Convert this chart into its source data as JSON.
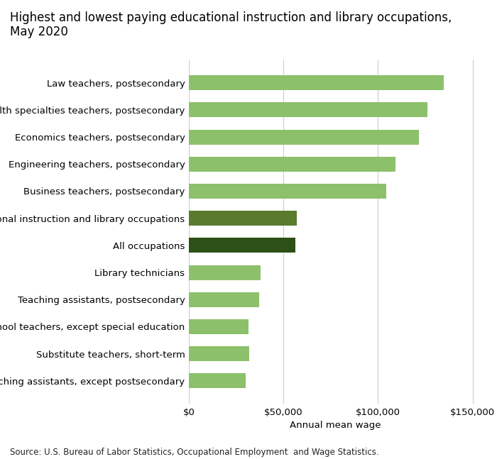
{
  "categories": [
    "Teaching assistants, except postsecondary",
    "Substitute teachers, short-term",
    "Preschool teachers, except special education",
    "Teaching assistants, postsecondary",
    "Library technicians",
    "All occupations",
    "All educational instruction and library occupations",
    "Business teachers, postsecondary",
    "Engineering teachers, postsecondary",
    "Economics teachers, postsecondary",
    "Health specialties teachers, postsecondary",
    "Law teachers, postsecondary"
  ],
  "values": [
    30010,
    31990,
    31490,
    37340,
    38010,
    56310,
    57090,
    104240,
    109280,
    121470,
    126080,
    134610
  ],
  "bar_colors": [
    "#8dc06a",
    "#8dc06a",
    "#8dc06a",
    "#8dc06a",
    "#8dc06a",
    "#2d5016",
    "#5a7a2e",
    "#8dc06a",
    "#8dc06a",
    "#8dc06a",
    "#8dc06a",
    "#8dc06a"
  ],
  "title_line1": "Highest and lowest paying educational instruction and library occupations,",
  "title_line2": "May 2020",
  "xlabel": "Annual mean wage",
  "xlim": [
    0,
    155000
  ],
  "xticks": [
    0,
    50000,
    100000,
    150000
  ],
  "xticklabels": [
    "$0",
    "$50,000",
    "$100,000",
    "$150,000"
  ],
  "source_text": "Source: U.S. Bureau of Labor Statistics, Occupational Employment  and Wage Statistics.",
  "title_fontsize": 12,
  "label_fontsize": 9.5,
  "tick_fontsize": 9.5,
  "bar_height": 0.55
}
